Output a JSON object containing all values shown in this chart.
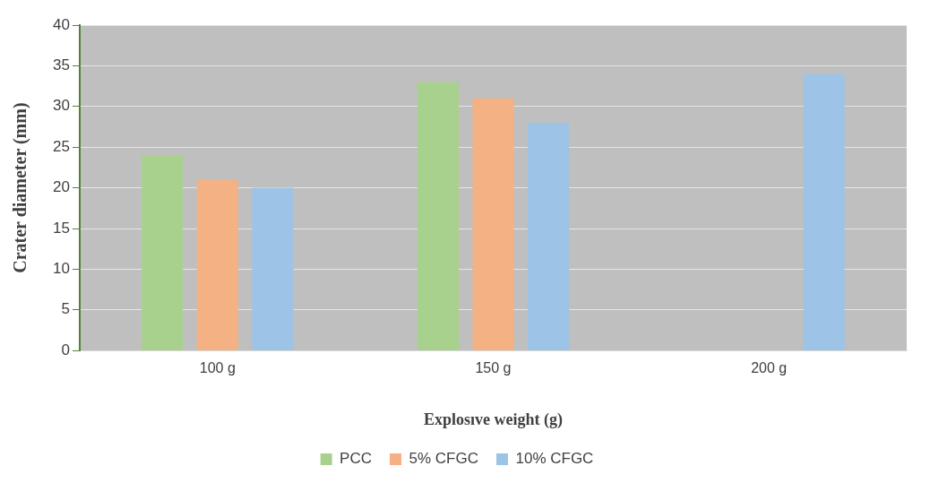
{
  "chart_data": {
    "type": "bar",
    "xlabel": "Explosıve weight (g)",
    "ylabel": "Crater diameter (mm)",
    "categories": [
      "100 g",
      "150 g",
      "200 g"
    ],
    "series": [
      {
        "name": "PCC",
        "color": "#a9d18e",
        "values": [
          24,
          33,
          null
        ]
      },
      {
        "name": "5% CFGC",
        "color": "#f4b183",
        "values": [
          21,
          31,
          null
        ]
      },
      {
        "name": "10% CFGC",
        "color": "#9dc3e6",
        "values": [
          20,
          28,
          34
        ]
      }
    ],
    "ylim": [
      0,
      40
    ],
    "yticks": [
      0,
      5,
      10,
      15,
      20,
      25,
      30,
      35,
      40
    ],
    "grid": "y",
    "legend": "bottom"
  }
}
